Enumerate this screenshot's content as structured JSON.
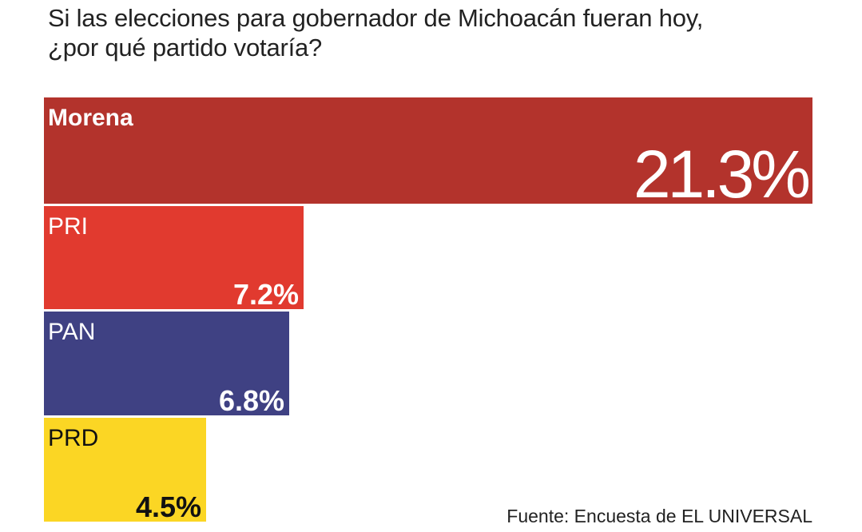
{
  "chart_data": {
    "type": "bar",
    "orientation": "horizontal",
    "title_lines": [
      "Si las elecciones para gobernador de Michoacán fueran hoy,",
      "¿por qué partido votaría?"
    ],
    "categories": [
      "Morena",
      "PRI",
      "PAN",
      "PRD"
    ],
    "values": [
      21.3,
      7.2,
      6.8,
      4.5
    ],
    "value_labels": [
      "21.3%",
      "7.2%",
      "6.8%",
      "4.5%"
    ],
    "colors": [
      "#b3332c",
      "#e13a2f",
      "#3f4183",
      "#fbd624"
    ],
    "label_colors": [
      "#ffffff",
      "#ffffff",
      "#ffffff",
      "#111111"
    ],
    "unit": "%",
    "source": "Fuente: Encuesta de EL UNIVERSAL"
  }
}
